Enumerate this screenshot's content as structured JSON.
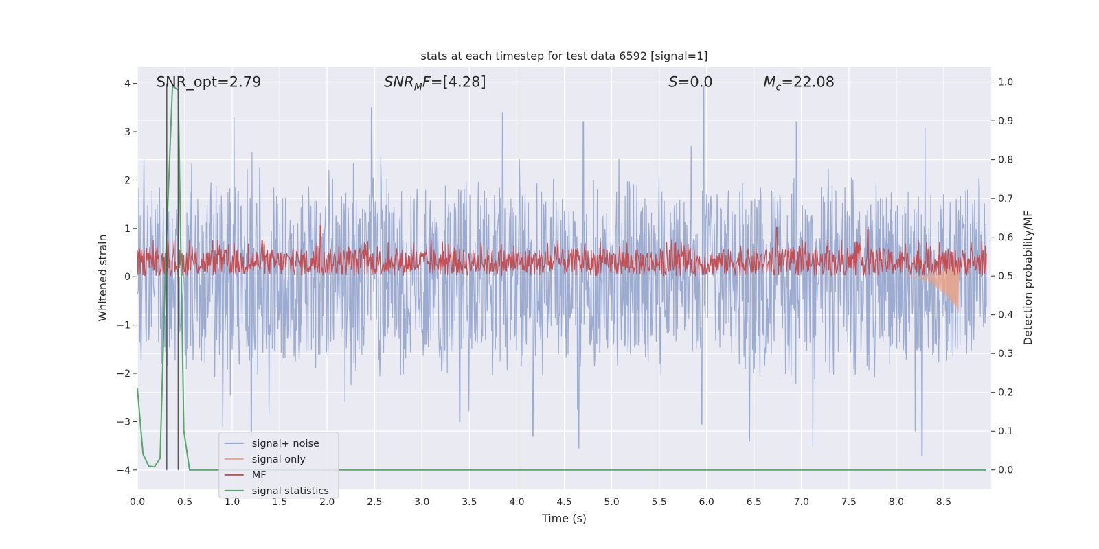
{
  "chart_data": {
    "type": "line",
    "title": "stats at each timestep for test data 6592 [signal=1]",
    "xlabel": "Time (s)",
    "ylabel": "Whitened strain",
    "y2label": "Detection probability/MF",
    "xlim": [
      0.0,
      9.0
    ],
    "ylim": [
      -4.4,
      4.35
    ],
    "y2lim": [
      -0.05,
      1.04
    ],
    "x_ticks": [
      "0.0",
      "0.5",
      "1.0",
      "1.5",
      "2.0",
      "2.5",
      "3.0",
      "3.5",
      "4.0",
      "4.5",
      "5.0",
      "5.5",
      "6.0",
      "6.5",
      "7.0",
      "7.5",
      "8.0",
      "8.5"
    ],
    "y_ticks": [
      "4",
      "3",
      "2",
      "1",
      "0",
      "−1",
      "−2",
      "−3",
      "−4"
    ],
    "y2_ticks": [
      "1.0",
      "0.9",
      "0.8",
      "0.7",
      "0.6",
      "0.5",
      "0.4",
      "0.3",
      "0.2",
      "0.1",
      "0.0"
    ],
    "grid": true,
    "legend_position": "bottom-left",
    "annotations": {
      "snr_opt": "SNR_opt=2.79",
      "snr_mf_var": "SNR",
      "snr_mf_sub": "M",
      "snr_mf_var2": "F",
      "snr_mf_val": "=[4.28]",
      "s_var": "S",
      "s_val": "=0.0",
      "mc_var": "M",
      "mc_sub": "c",
      "mc_val": "=22.08"
    },
    "vertical_markers_x": [
      0.31,
      0.43
    ],
    "series": [
      {
        "name": "signal+ noise",
        "color": "#8da0cb",
        "axis": "left",
        "style": "dense_noise",
        "typical_range": [
          -1.8,
          1.8
        ],
        "spikes": [
          {
            "x": 1.02,
            "y": 3.3
          },
          {
            "x": 2.47,
            "y": 3.5
          },
          {
            "x": 3.85,
            "y": 3.4
          },
          {
            "x": 4.7,
            "y": 3.2
          },
          {
            "x": 5.97,
            "y": 3.95
          },
          {
            "x": 6.95,
            "y": 3.2
          },
          {
            "x": 0.9,
            "y": -3.1
          },
          {
            "x": 1.2,
            "y": -3.3
          },
          {
            "x": 3.4,
            "y": -3.0
          },
          {
            "x": 4.17,
            "y": -3.3
          },
          {
            "x": 4.65,
            "y": -3.55
          },
          {
            "x": 5.95,
            "y": -3.05
          },
          {
            "x": 6.45,
            "y": -3.4
          },
          {
            "x": 7.12,
            "y": -3.5
          },
          {
            "x": 8.2,
            "y": -3.2
          },
          {
            "x": 8.27,
            "y": -3.7
          }
        ]
      },
      {
        "name": "signal only",
        "color": "#e8a48c",
        "axis": "left",
        "style": "chirp",
        "start_x": 8.1,
        "end_x": 8.66,
        "peak_amplitude": -0.55
      },
      {
        "name": "MF",
        "color": "#c44e52",
        "axis": "right",
        "style": "dense_noise",
        "typical_range": [
          0.5,
          0.57
        ],
        "spikes": [
          {
            "x": 1.93,
            "y": 0.63
          },
          {
            "x": 6.74,
            "y": 0.625
          },
          {
            "x": 7.7,
            "y": 0.62
          }
        ]
      },
      {
        "name": "signal statistics",
        "color": "#55a868",
        "axis": "right",
        "style": "line",
        "x": [
          0.0,
          0.06,
          0.12,
          0.18,
          0.24,
          0.3,
          0.37,
          0.43,
          0.49,
          0.55,
          0.6,
          1.0,
          2.0,
          3.0,
          4.0,
          5.0,
          6.0,
          7.0,
          8.0,
          8.95
        ],
        "y": [
          0.21,
          0.04,
          0.01,
          0.008,
          0.03,
          0.55,
          0.99,
          0.98,
          0.1,
          0.0,
          0.0,
          0.0,
          0.0,
          0.0,
          0.0,
          0.0,
          0.0,
          0.0,
          0.0,
          0.0
        ]
      }
    ]
  }
}
